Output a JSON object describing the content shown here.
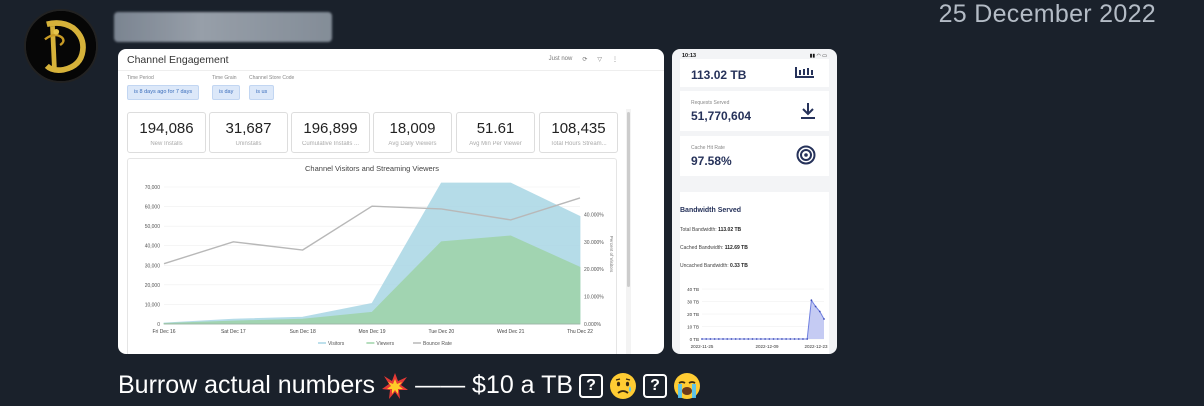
{
  "message": {
    "date": "25 December 2022",
    "text_start": "Burrow actual numbers",
    "text_end": "—— $10 a TB",
    "unknown_glyph": "?"
  },
  "dashboard": {
    "title": "Channel Engagement",
    "tools": {
      "refresh_status": "Just now"
    },
    "filters": [
      {
        "label": "Time Period",
        "value": "is 8 days ago for 7 days"
      },
      {
        "label": "Time Grain",
        "value": "is day"
      },
      {
        "label": "Channel Store Code",
        "value": "is us"
      }
    ],
    "kpis": [
      {
        "value": "194,086",
        "label": "New Installs"
      },
      {
        "value": "31,687",
        "label": "Uninstalls"
      },
      {
        "value": "196,899",
        "label": "Cumulative Installs ..."
      },
      {
        "value": "18,009",
        "label": "Avg Daily Viewers"
      },
      {
        "value": "51.61",
        "label": "Avg Min Per Viewer"
      },
      {
        "value": "108,435",
        "label": "Total Hours Stream..."
      }
    ]
  },
  "chart_data": [
    {
      "type": "area",
      "title": "Channel Visitors and Streaming Viewers",
      "categories": [
        "Fri Dec 16",
        "Sat Dec 17",
        "Sun Dec 18",
        "Mon Dec 19",
        "Tue Dec 20",
        "Wed Dec 21",
        "Thu Dec 22"
      ],
      "ylim": [
        0,
        70000
      ],
      "y_ticks": [
        "0",
        "10,000",
        "20,000",
        "30,000",
        "40,000",
        "50,000",
        "60,000",
        "70,000"
      ],
      "y2_ticks": [
        "0.000%",
        "10.000%",
        "20.000%",
        "30.000%",
        "40.000%"
      ],
      "y2label": "Percent of Visitors",
      "series": [
        {
          "name": "Visitors",
          "values": [
            500,
            2500,
            3500,
            10500,
            72000,
            72000,
            55000
          ],
          "color": "#a9d6e5"
        },
        {
          "name": "Viewers",
          "values": [
            300,
            1500,
            2500,
            6000,
            42000,
            45000,
            29000
          ],
          "color": "#9ed3a8"
        },
        {
          "name": "Bounce Rate",
          "values_pct": [
            22,
            30,
            27,
            43,
            42,
            38,
            46
          ],
          "color": "#b8b8b8"
        }
      ],
      "legend": "bottom"
    },
    {
      "type": "area",
      "title": "",
      "x_ticks": [
        "2022-11-25",
        "2022-12-09",
        "2022-12-23"
      ],
      "y_ticks": [
        "0 TB",
        "10 TB",
        "20 TB",
        "30 TB",
        "40 TB"
      ],
      "ylim": [
        0,
        40
      ],
      "series": [
        {
          "name": "Bandwidth",
          "values": [
            0,
            0,
            0,
            0,
            0,
            0,
            0,
            0,
            0,
            0,
            0,
            0,
            0,
            0,
            0,
            0,
            0,
            0,
            0,
            0,
            0,
            0,
            0,
            0,
            0,
            0,
            31,
            26,
            22,
            16
          ],
          "color": "#6f7fe0"
        }
      ]
    }
  ],
  "phone": {
    "time": "10:13",
    "top_value": "113.02 TB",
    "requests_label": "Requests Served",
    "requests_value": "51,770,604",
    "cache_label": "Cache Hit Rate",
    "cache_value": "97.58%",
    "bandwidth_title": "Bandwidth Served",
    "total_label": "Total Bandwidth:",
    "total_value": "113.02 TB",
    "cached_label": "Cached Bandwidth:",
    "cached_value": "112.69 TB",
    "uncached_label": "Uncached Bandwidth:",
    "uncached_value": "0.33 TB"
  }
}
